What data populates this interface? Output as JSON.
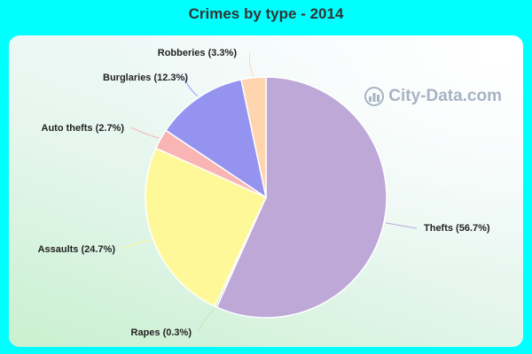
{
  "chart_data": {
    "type": "pie",
    "title": "Crimes by type - 2014",
    "slices": [
      {
        "label": "Thefts (56.7%)",
        "value": 56.7,
        "color": "#bea8d8"
      },
      {
        "label": "Rapes (0.3%)",
        "value": 0.3,
        "color": "#c8e6b0"
      },
      {
        "label": "Assaults (24.7%)",
        "value": 24.7,
        "color": "#fff899"
      },
      {
        "label": "Auto thefts (2.7%)",
        "value": 2.7,
        "color": "#f9b4b4"
      },
      {
        "label": "Burglaries (12.3%)",
        "value": 12.3,
        "color": "#9494f0"
      },
      {
        "label": "Robberies (3.3%)",
        "value": 3.3,
        "color": "#ffd5b0"
      }
    ],
    "start": "12 o'clock",
    "direction": "clockwise"
  },
  "watermark": {
    "text": "City-Data.com"
  }
}
